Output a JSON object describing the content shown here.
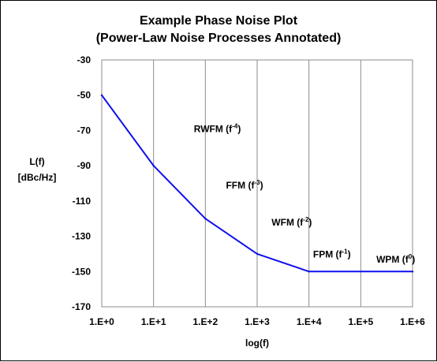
{
  "chart_data": {
    "type": "line",
    "title_line1": "Example Phase Noise Plot",
    "title_line2": "(Power-Law Noise Processes Annotated)",
    "ylabel_line1": "L(f)",
    "ylabel_line2": "[dBc/Hz]",
    "xlabel": "log(f)",
    "x_tick_labels": [
      "1.E+0",
      "1.E+1",
      "1.E+2",
      "1.E+3",
      "1.E+4",
      "1.E+5",
      "1.E+6"
    ],
    "y_tick_labels": [
      "-30",
      "-50",
      "-70",
      "-90",
      "-110",
      "-130",
      "-150",
      "-170"
    ],
    "xlim": [
      1,
      1000000
    ],
    "x_scale": "log",
    "ylim": [
      -170,
      -30
    ],
    "y_tick_step": 20,
    "grid": "vertical",
    "legend": "none",
    "series": [
      {
        "color": "#1010ee",
        "x": [
          1,
          10,
          100,
          1000,
          10000,
          1000000
        ],
        "y": [
          -50,
          -90,
          -120,
          -140,
          -150,
          -150
        ]
      }
    ],
    "annotations": [
      {
        "base": "RWFM (f",
        "sup": "-4",
        "tail": ")",
        "x": 60,
        "y": -71
      },
      {
        "base": "FFM (f",
        "sup": "-3",
        "tail": ")",
        "x": 250,
        "y": -103
      },
      {
        "base": "WFM (f",
        "sup": "-2",
        "tail": ")",
        "x": 1900,
        "y": -124
      },
      {
        "base": "FPM (f",
        "sup": "-1",
        "tail": ")",
        "x": 12000,
        "y": -142
      },
      {
        "base": "WPM (f",
        "sup": "0",
        "tail": ")",
        "x": 200000,
        "y": -145
      }
    ]
  }
}
